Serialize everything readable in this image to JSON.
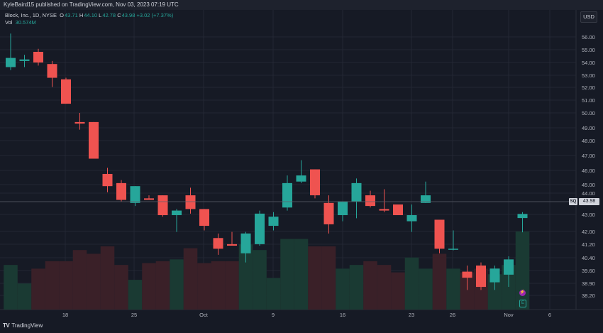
{
  "header": {
    "published_by": "KyleBaird15 published on TradingView.com, Nov 03, 2023 07:19 UTC"
  },
  "legend": {
    "symbol": "Block, Inc., 1D, NYSE",
    "open_label": "O",
    "open": "43.71",
    "high_label": "H",
    "high": "44.10",
    "low_label": "L",
    "low": "42.78",
    "close_label": "C",
    "close": "43.98",
    "change": "+3.02 (+7.37%)",
    "vol_label": "Vol",
    "vol": "30.574M"
  },
  "price_axis": {
    "currency": "USD",
    "ticks": [
      "56.00",
      "55.00",
      "54.00",
      "53.00",
      "52.00",
      "51.00",
      "50.00",
      "49.00",
      "48.00",
      "47.00",
      "46.00",
      "45.00",
      "44.00",
      "43.00",
      "42.00",
      "41.20",
      "40.40",
      "39.60",
      "38.90",
      "38.20"
    ],
    "last_price": "43.98",
    "symbol_badge": "SQ"
  },
  "time_axis": {
    "labels": [
      "18",
      "25",
      "Oct",
      "9",
      "16",
      "23",
      "26",
      "Nov",
      "6"
    ]
  },
  "footer": {
    "brand": "TradingView",
    "logo_text": "TV"
  },
  "colors": {
    "bg": "#161a25",
    "up": "#26a69a",
    "down": "#ef5350",
    "grid": "#232733",
    "text": "#d1d4dc"
  },
  "icons": {
    "split_event": "lightning-icon",
    "earnings_event": "earnings-e-icon"
  },
  "events": {
    "earnings_letter": "E",
    "split_glyph": "⚡"
  },
  "chart_data": {
    "type": "candlestick",
    "title": "Block, Inc., 1D, NYSE",
    "ylim": [
      37.9,
      56.6
    ],
    "candles": [
      {
        "o": 53.6,
        "h": 55.8,
        "l": 53.4,
        "c": 54.2
      },
      {
        "o": 54.0,
        "h": 54.4,
        "l": 53.6,
        "c": 54.1
      },
      {
        "o": 54.6,
        "h": 54.8,
        "l": 53.7,
        "c": 53.9
      },
      {
        "o": 53.8,
        "h": 54.0,
        "l": 52.3,
        "c": 52.9
      },
      {
        "o": 52.8,
        "h": 52.9,
        "l": 51.2,
        "c": 51.2
      },
      {
        "o": 50.0,
        "h": 50.6,
        "l": 49.5,
        "c": 49.9
      },
      {
        "o": 50.0,
        "h": 50.0,
        "l": 47.6,
        "c": 47.6
      },
      {
        "o": 46.6,
        "h": 47.0,
        "l": 45.4,
        "c": 45.8
      },
      {
        "o": 46.0,
        "h": 46.2,
        "l": 44.8,
        "c": 44.9
      },
      {
        "o": 44.7,
        "h": 45.8,
        "l": 44.5,
        "c": 45.8
      },
      {
        "o": 45.0,
        "h": 45.2,
        "l": 44.9,
        "c": 44.9
      },
      {
        "o": 45.2,
        "h": 45.2,
        "l": 43.8,
        "c": 43.9
      },
      {
        "o": 43.9,
        "h": 44.3,
        "l": 42.8,
        "c": 44.2
      },
      {
        "o": 45.2,
        "h": 45.7,
        "l": 44.0,
        "c": 44.3
      },
      {
        "o": 44.3,
        "h": 44.3,
        "l": 42.9,
        "c": 43.2
      },
      {
        "o": 42.4,
        "h": 42.7,
        "l": 41.3,
        "c": 41.7
      },
      {
        "o": 42.0,
        "h": 42.8,
        "l": 41.9,
        "c": 41.9
      },
      {
        "o": 41.4,
        "h": 42.8,
        "l": 40.8,
        "c": 42.7
      },
      {
        "o": 42.0,
        "h": 44.2,
        "l": 41.9,
        "c": 44.0
      },
      {
        "o": 43.2,
        "h": 44.1,
        "l": 42.9,
        "c": 43.8
      },
      {
        "o": 44.4,
        "h": 46.5,
        "l": 44.2,
        "c": 46.0
      },
      {
        "o": 46.1,
        "h": 47.5,
        "l": 46.0,
        "c": 46.5
      },
      {
        "o": 46.9,
        "h": 46.9,
        "l": 45.0,
        "c": 45.2
      },
      {
        "o": 44.7,
        "h": 45.2,
        "l": 42.7,
        "c": 43.3
      },
      {
        "o": 43.9,
        "h": 44.8,
        "l": 43.5,
        "c": 44.8
      },
      {
        "o": 44.8,
        "h": 46.3,
        "l": 43.7,
        "c": 46.0
      },
      {
        "o": 45.2,
        "h": 45.5,
        "l": 44.4,
        "c": 44.5
      },
      {
        "o": 44.3,
        "h": 45.6,
        "l": 44.1,
        "c": 44.2
      },
      {
        "o": 44.6,
        "h": 44.6,
        "l": 44.0,
        "c": 43.9
      },
      {
        "o": 43.5,
        "h": 44.6,
        "l": 42.8,
        "c": 43.9
      },
      {
        "o": 44.7,
        "h": 46.1,
        "l": 44.7,
        "c": 45.2
      },
      {
        "o": 43.6,
        "h": 43.6,
        "l": 41.4,
        "c": 41.7
      },
      {
        "o": 41.7,
        "h": 42.9,
        "l": 41.6,
        "c": 41.7
      },
      {
        "o": 40.2,
        "h": 40.6,
        "l": 39.0,
        "c": 39.8
      },
      {
        "o": 40.6,
        "h": 40.8,
        "l": 39.0,
        "c": 39.2
      },
      {
        "o": 39.5,
        "h": 40.6,
        "l": 39.0,
        "c": 40.4
      },
      {
        "o": 40.0,
        "h": 41.2,
        "l": 39.2,
        "c": 41.0
      },
      {
        "o": 43.71,
        "h": 44.1,
        "l": 42.78,
        "c": 43.98
      }
    ],
    "volume": [
      24,
      14,
      22,
      26,
      26,
      32,
      30,
      34,
      24,
      16,
      25,
      26,
      27,
      33,
      25,
      26,
      26,
      35,
      32,
      17,
      38,
      38,
      34,
      34,
      22,
      24,
      26,
      24,
      20,
      28,
      22,
      30,
      22,
      20,
      22,
      19,
      24,
      42
    ]
  }
}
